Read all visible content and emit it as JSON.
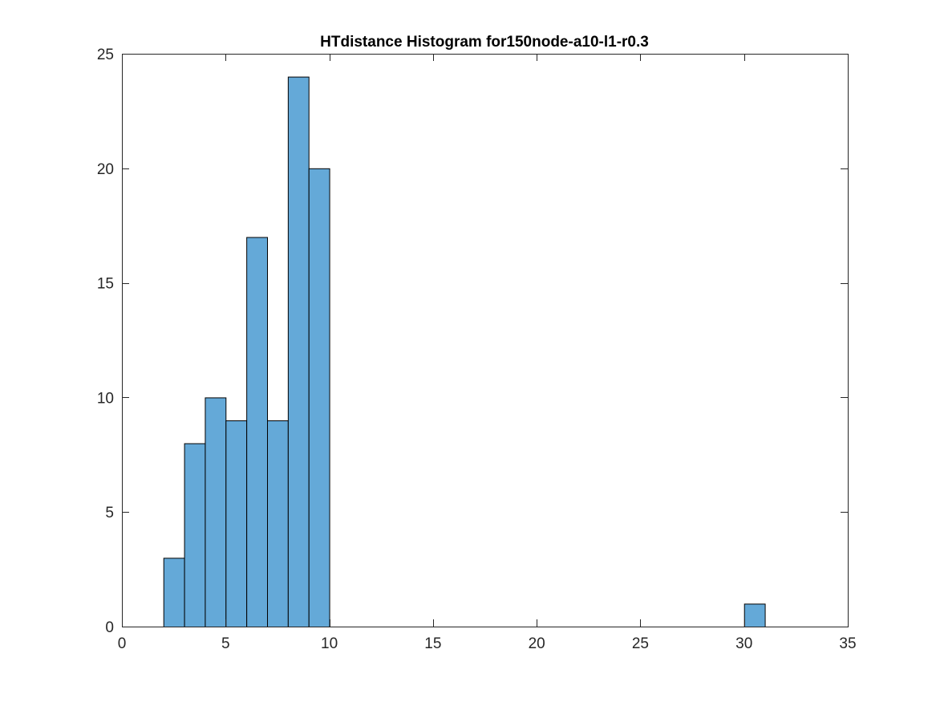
{
  "chart_data": {
    "type": "bar",
    "title": "HTdistance Histogram for150node-a10-l1-r0.3",
    "xlabel": "",
    "ylabel": "",
    "xlim": [
      0,
      35
    ],
    "ylim": [
      0,
      25
    ],
    "xticks": [
      0,
      5,
      10,
      15,
      20,
      25,
      30,
      35
    ],
    "yticks": [
      0,
      5,
      10,
      15,
      20,
      25
    ],
    "grid": false,
    "bar_color": "#64a9d8",
    "edge_color": "#000000",
    "bins": [
      {
        "x0": 2,
        "x1": 3,
        "count": 3
      },
      {
        "x0": 3,
        "x1": 4,
        "count": 8
      },
      {
        "x0": 4,
        "x1": 5,
        "count": 10
      },
      {
        "x0": 5,
        "x1": 6,
        "count": 9
      },
      {
        "x0": 6,
        "x1": 7,
        "count": 17
      },
      {
        "x0": 7,
        "x1": 8,
        "count": 9
      },
      {
        "x0": 8,
        "x1": 9,
        "count": 24
      },
      {
        "x0": 9,
        "x1": 10,
        "count": 20
      },
      {
        "x0": 30,
        "x1": 31,
        "count": 1
      }
    ]
  }
}
